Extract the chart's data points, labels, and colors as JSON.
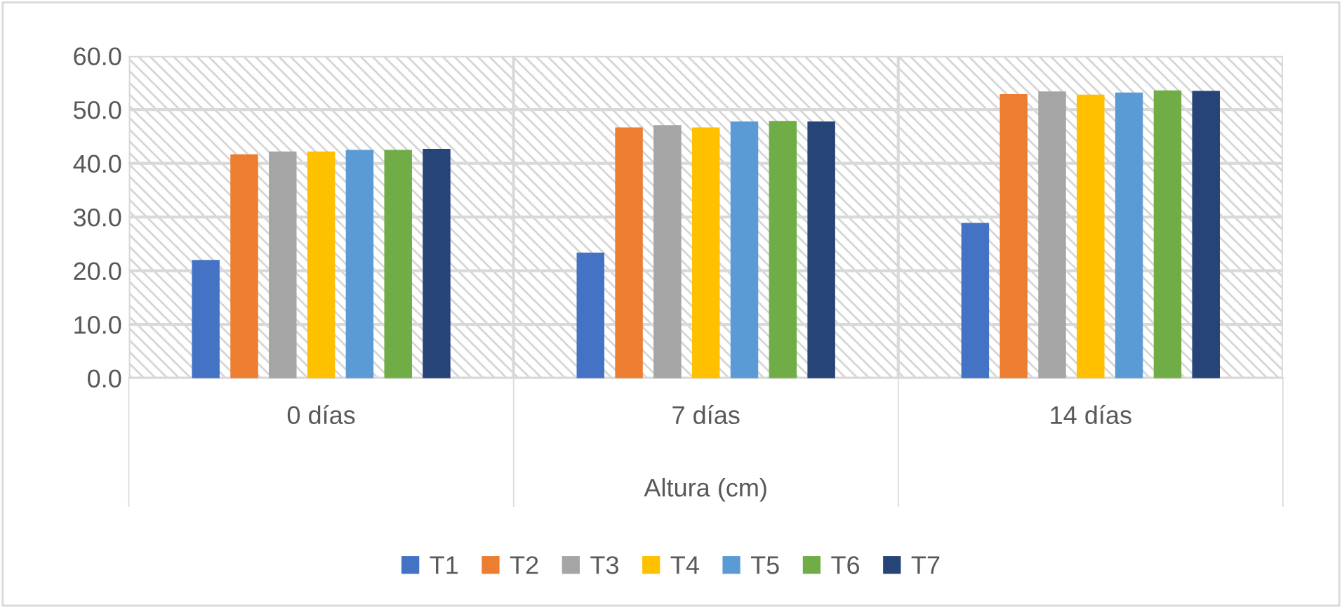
{
  "chart_data": {
    "type": "bar",
    "xlabel": "Altura (cm)",
    "categories": [
      "0 días",
      "7 días",
      "14 días"
    ],
    "series": [
      {
        "name": "T1",
        "color": "#4472c4",
        "values": [
          22.0,
          23.4,
          28.9
        ]
      },
      {
        "name": "T2",
        "color": "#ed7d31",
        "values": [
          41.7,
          46.7,
          52.9
        ]
      },
      {
        "name": "T3",
        "color": "#a5a5a5",
        "values": [
          42.2,
          47.1,
          53.4
        ]
      },
      {
        "name": "T4",
        "color": "#ffc000",
        "values": [
          42.2,
          46.7,
          52.8
        ]
      },
      {
        "name": "T5",
        "color": "#5b9bd5",
        "values": [
          42.5,
          47.8,
          53.2
        ]
      },
      {
        "name": "T6",
        "color": "#70ad47",
        "values": [
          42.5,
          47.9,
          53.6
        ]
      },
      {
        "name": "T7",
        "color": "#264478",
        "values": [
          42.7,
          47.8,
          53.5
        ]
      }
    ],
    "ylim": [
      0,
      60
    ],
    "yticks": [
      {
        "value": 0,
        "label": "0.0"
      },
      {
        "value": 10,
        "label": "10.0"
      },
      {
        "value": 20,
        "label": "20.0"
      },
      {
        "value": 30,
        "label": "30.0"
      },
      {
        "value": 40,
        "label": "40.0"
      },
      {
        "value": 50,
        "label": "50.0"
      },
      {
        "value": 60,
        "label": "60.0"
      }
    ],
    "grid": "y",
    "legend": "bottom"
  }
}
